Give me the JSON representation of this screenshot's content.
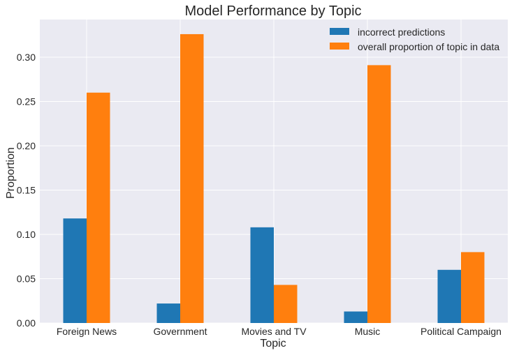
{
  "chart_data": {
    "type": "bar",
    "title": "Model Performance by Topic",
    "xlabel": "Topic",
    "ylabel": "Proportion",
    "categories": [
      "Foreign News",
      "Government",
      "Movies and TV",
      "Music",
      "Political Campaign"
    ],
    "series": [
      {
        "name": "incorrect predictions",
        "color": "#1f77b4",
        "values": [
          0.118,
          0.022,
          0.108,
          0.013,
          0.06
        ]
      },
      {
        "name": "overall proportion of topic in data",
        "color": "#ff7f0e",
        "values": [
          0.26,
          0.326,
          0.043,
          0.291,
          0.08
        ]
      }
    ],
    "ylim": [
      0,
      0.3425
    ],
    "yticks": [
      "0.00",
      "0.05",
      "0.10",
      "0.15",
      "0.20",
      "0.25",
      "0.30"
    ],
    "grid": true,
    "legend_position": "top-right",
    "background_color": "#eaeaf2",
    "grid_color": "#ffffff"
  }
}
